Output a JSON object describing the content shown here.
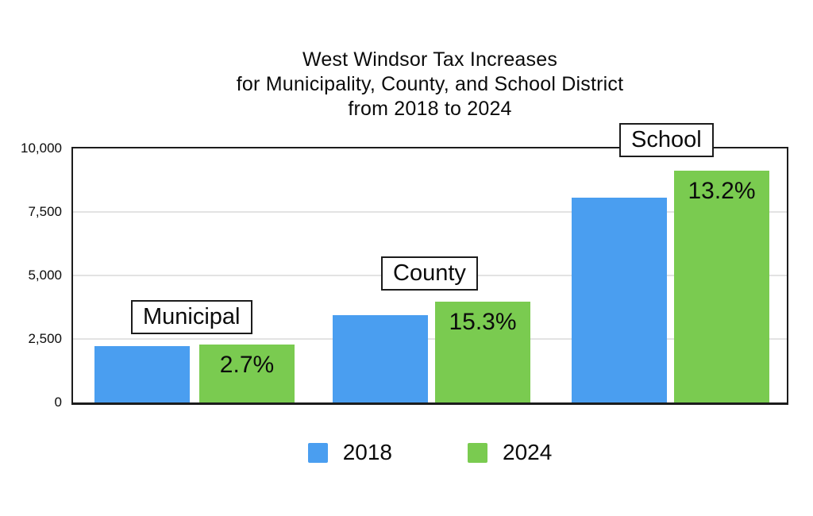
{
  "title": {
    "lines": [
      "West Windsor Tax Increases",
      "for Municipality, County, and School District",
      "from 2018 to 2024"
    ]
  },
  "chart_data": {
    "type": "bar",
    "title": "West Windsor Tax Increases for Municipality, County, and School District from 2018 to 2024",
    "categories": [
      "Municipal",
      "County",
      "School"
    ],
    "series": [
      {
        "name": "2018",
        "color": "#4A9EF0",
        "values": [
          2215,
          3450,
          8060
        ]
      },
      {
        "name": "2024",
        "color": "#7ACB50",
        "values": [
          2275,
          3978,
          9124
        ]
      }
    ],
    "increase_labels": [
      "2.7%",
      "15.3%",
      "13.2%"
    ],
    "ylim": [
      0,
      10000
    ],
    "y_ticks": [
      "10,000",
      "7,500",
      "5,000",
      "2,500",
      "0"
    ],
    "grid": true,
    "gridline_values": [
      2500,
      5000,
      7500
    ],
    "legend_position": "bottom"
  },
  "legend": {
    "items": [
      {
        "label": "2018",
        "color": "#4A9EF0"
      },
      {
        "label": "2024",
        "color": "#7ACB50"
      }
    ]
  }
}
